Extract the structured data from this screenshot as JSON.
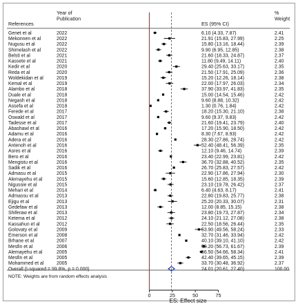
{
  "headers": {
    "references": "References",
    "year": "Year of\nPublication",
    "es_ci": "ES (95% CI)",
    "weight": "%\nWeight"
  },
  "note": "NOTE: Weights are from random effects analysis",
  "chart_data": {
    "type": "forest",
    "xlabel": "ES: Effect size",
    "xticks": [
      0,
      25,
      50,
      75
    ],
    "xlim": [
      0,
      75
    ],
    "null_line": 0,
    "pooled_line": 24.01,
    "colors": {
      "null_line": "#d62728",
      "pooled_line": "#c0392b",
      "diamond": "#1f3fbf",
      "marker": "#000000"
    },
    "studies": [
      {
        "ref": "Genet et al",
        "year": "2022",
        "es": 6.1,
        "lo": 4.33,
        "hi": 7.87,
        "ci": "6.10 (4.33, 7.87)",
        "weight": "2.41"
      },
      {
        "ref": "Mekonnen et al",
        "year": "2022",
        "es": 21.91,
        "lo": 15.83,
        "hi": 27.99,
        "ci": "21.91 (15.83, 27.99)",
        "weight": "2.25"
      },
      {
        "ref": "Nugusu et al",
        "year": "2022",
        "es": 15.8,
        "lo": 13.16,
        "hi": 18.44,
        "ci": "15.80 (13.16, 18.44)",
        "weight": "2.39"
      },
      {
        "ref": "Shimelash et al",
        "year": "2022",
        "es": 9.9,
        "lo": 6.95,
        "hi": 12.85,
        "ci": "9.90 (6.95, 12.85)",
        "weight": "2.38"
      },
      {
        "ref": "Belsti et al",
        "year": "2021",
        "es": 21.6,
        "lo": 18.33,
        "hi": 24.87,
        "ci": "21.60 (18.33, 24.87)",
        "weight": "2.37"
      },
      {
        "ref": "Kassete et al",
        "year": "2021",
        "es": 11.8,
        "lo": 9.49,
        "hi": 14.11,
        "ci": "11.80 (9.49, 14.11)",
        "weight": "2.40"
      },
      {
        "ref": "Kedir et al",
        "year": "2020",
        "es": 29.4,
        "lo": 25.63,
        "hi": 33.17,
        "ci": "29.40 (25.63, 33.17)",
        "weight": "2.35"
      },
      {
        "ref": "Reda et al",
        "year": "2020",
        "es": 21.5,
        "lo": 17.91,
        "hi": 25.09,
        "ci": "21.50 (17.91, 25.09)",
        "weight": "2.36"
      },
      {
        "ref": "Woldekidan et al",
        "year": "2019",
        "es": 15.2,
        "lo": 12.26,
        "hi": 18.14,
        "ci": "15.20 (12.26, 18.14)",
        "weight": "2.38"
      },
      {
        "ref": "Kemal et al",
        "year": "2019",
        "es": 22.0,
        "lo": 17.97,
        "hi": 26.03,
        "ci": "22.00 (17.97, 26.03)",
        "weight": "2.34"
      },
      {
        "ref": "Alambo et al",
        "year": "2018",
        "es": 37.9,
        "lo": 33.97,
        "hi": 41.83,
        "ci": "37.90 (33.97, 41.83)",
        "weight": "2.35"
      },
      {
        "ref": "Duale et al",
        "year": "2018",
        "es": 15.0,
        "lo": 14.54,
        "hi": 15.46,
        "ci": "15.00 (14.54, 15.46)",
        "weight": "2.42"
      },
      {
        "ref": "Negash et al",
        "year": "2018",
        "es": 9.6,
        "lo": 8.88,
        "hi": 10.32,
        "ci": "9.60 (8.88, 10.32)",
        "weight": "2.42"
      },
      {
        "ref": "Assefa et al",
        "year": "2018",
        "es": 1.3,
        "lo": 0.76,
        "hi": 1.84,
        "ci": "1.30 (0.76, 1.84)",
        "weight": "2.42"
      },
      {
        "ref": "Ferede et al",
        "year": "2017",
        "es": 18.2,
        "lo": 15.3,
        "hi": 21.1,
        "ci": "18.20 (15.30, 21.10)",
        "weight": "2.38"
      },
      {
        "ref": "Oswald et al",
        "year": "2017",
        "es": 9.6,
        "lo": 9.37,
        "hi": 9.83,
        "ci": "9.60 (9.37, 9.83)",
        "weight": "2.42"
      },
      {
        "ref": "Tadesse et al",
        "year": "2017",
        "es": 21.6,
        "lo": 19.41,
        "hi": 23.79,
        "ci": "21.60 (19.41, 23.79)",
        "weight": "2.40"
      },
      {
        "ref": "Abashawl et al",
        "year": "2016",
        "es": 17.2,
        "lo": 15.9,
        "hi": 18.5,
        "ci": "17.20 (15.90, 18.50)",
        "weight": "2.42"
      },
      {
        "ref": "Adamu et al",
        "year": "2016",
        "es": 8.3,
        "lo": 7.67,
        "hi": 8.93,
        "ci": "8.30 (7.67, 8.93)",
        "weight": "2.42"
      },
      {
        "ref": "Adera et al",
        "year": "2016",
        "es": 28.3,
        "lo": 27.86,
        "hi": 28.74,
        "ci": "28.30 (27.86, 28.74)",
        "weight": "2.42"
      },
      {
        "ref": "Antenoh et al",
        "year": "2016",
        "es": 52.4,
        "lo": 48.41,
        "hi": 56.39,
        "ci": "52.40 (48.41, 56.39)",
        "weight": "2.35"
      },
      {
        "ref": "Asres et al",
        "year": "2016",
        "es": 12.1,
        "lo": 9.46,
        "hi": 14.74,
        "ci": "12.10 (9.46, 14.74)",
        "weight": "2.39"
      },
      {
        "ref": "Bero et al",
        "year": "2016",
        "es": 23.4,
        "lo": 22.99,
        "hi": 23.81,
        "ci": "23.40 (22.99, 23.81)",
        "weight": "2.42"
      },
      {
        "ref": "Mengistu et al",
        "year": "2016",
        "es": 36.7,
        "lo": 32.88,
        "hi": 40.52,
        "ci": "36.70 (32.88, 40.52)",
        "weight": "2.35"
      },
      {
        "ref": "Sadik et al",
        "year": "2016",
        "es": 26.7,
        "lo": 25.83,
        "hi": 27.57,
        "ci": "26.70 (25.83, 27.57)",
        "weight": "2.42"
      },
      {
        "ref": "Admasu et al",
        "year": "2015",
        "es": 22.9,
        "lo": 17.86,
        "hi": 27.94,
        "ci": "22.90 (17.86, 27.94)",
        "weight": "2.30"
      },
      {
        "ref": "Alemayehu et al",
        "year": "2015",
        "es": 15.6,
        "lo": 12.85,
        "hi": 18.35,
        "ci": "15.60 (12.85, 18.35)",
        "weight": "2.39"
      },
      {
        "ref": "Nigussie et al",
        "year": "2015",
        "es": 23.1,
        "lo": 19.78,
        "hi": 26.42,
        "ci": "23.10 (19.78, 26.42)",
        "weight": "2.37"
      },
      {
        "ref": "Mehari et al",
        "year": "2014",
        "es": 6.4,
        "lo": 4.63,
        "hi": 8.17,
        "ci": "6.40 (4.63, 8.17)",
        "weight": "2.41"
      },
      {
        "ref": "Admassu et al",
        "year": "2013",
        "es": 22.8,
        "lo": 19.83,
        "hi": 25.77,
        "ci": "22.80 (19.83, 25.77)",
        "weight": "2.38"
      },
      {
        "ref": "Ejigu et al",
        "year": "2013",
        "es": 25.2,
        "lo": 20.33,
        "hi": 30.07,
        "ci": "25.20 (20.33, 30.07)",
        "weight": "2.31"
      },
      {
        "ref": "Gedefaw et al",
        "year": "2013",
        "es": 12.0,
        "lo": 8.85,
        "hi": 15.15,
        "ci": "12.00 (8.85, 15.15)",
        "weight": "2.38"
      },
      {
        "ref": "Shiferaw et al",
        "year": "2013",
        "es": 23.8,
        "lo": 19.73,
        "hi": 27.87,
        "ci": "23.80 (19.73, 27.87)",
        "weight": "2.34"
      },
      {
        "ref": "Ketema et al",
        "year": "2012",
        "es": 24.1,
        "lo": 21.12,
        "hi": 27.08,
        "ci": "24.10 (21.12, 27.08)",
        "weight": "2.38"
      },
      {
        "ref": "Kassahun et al",
        "year": "2012",
        "es": 22.5,
        "lo": 18.56,
        "hi": 26.44,
        "ci": "22.50 (18.56, 26.44)",
        "weight": "2.35"
      },
      {
        "ref": "Golovaty et al",
        "year": "2009",
        "es": 53.9,
        "lo": 49.56,
        "hi": 58.24,
        "ci": "53.90 (49.56, 58.24)",
        "weight": "2.33"
      },
      {
        "ref": "Emerson et al",
        "year": "2008",
        "es": 32.7,
        "lo": 31.46,
        "hi": 33.94,
        "ci": "32.70 (31.46, 33.94)",
        "weight": "2.42"
      },
      {
        "ref": "Brhane et al",
        "year": "2007",
        "es": 40.1,
        "lo": 39.1,
        "hi": 41.1,
        "ci": "40.10 (39.10, 41.10)",
        "weight": "2.42"
      },
      {
        "ref": "Mesfin et al",
        "year": "2006",
        "es": 59.2,
        "lo": 56.73,
        "hi": 61.67,
        "ci": "59.20 (56.73, 61.67)",
        "weight": "2.39"
      },
      {
        "ref": "Alemayehu et al",
        "year": "2005",
        "es": 56.5,
        "lo": 54.66,
        "hi": 58.34,
        "ci": "56.50 (54.66, 58.34)",
        "weight": "2.41"
      },
      {
        "ref": "Mesfin et al",
        "year": "2005",
        "es": 42.4,
        "lo": 39.65,
        "hi": 45.15,
        "ci": "42.40 (39.65, 45.15)",
        "weight": "2.39"
      },
      {
        "ref": "Mohammed et al",
        "year": "2005",
        "es": 33.7,
        "lo": 30.48,
        "hi": 36.92,
        "ci": "33.70 (30.48, 36.92)",
        "weight": "2.37"
      }
    ],
    "overall": {
      "label": "Overall  (I-squared = 99.8%, p = 0.000)",
      "es": 24.01,
      "lo": 20.61,
      "hi": 27.4,
      "ci": "24.01 (20.61, 27.40)",
      "weight": "100.00"
    }
  }
}
